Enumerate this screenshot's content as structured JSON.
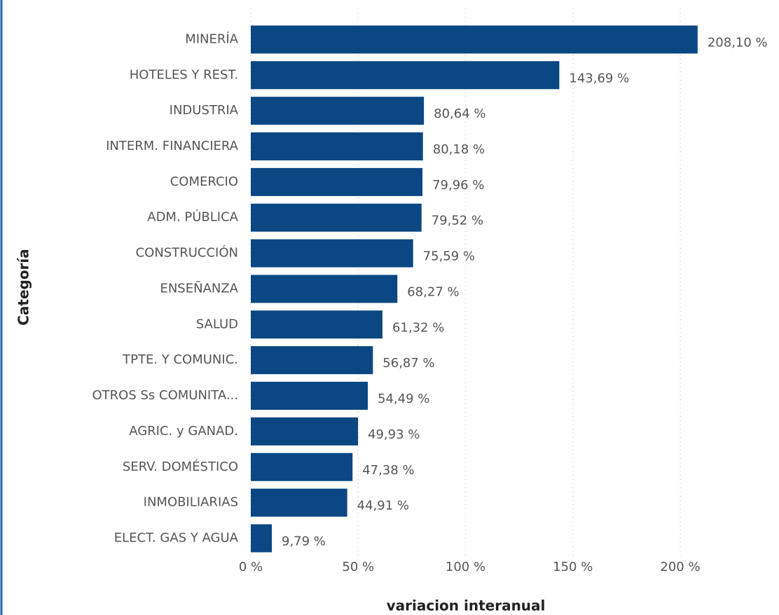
{
  "chart_data": {
    "type": "bar",
    "orientation": "horizontal",
    "x_label": "variacion interanual",
    "y_label": "Categoría",
    "categories": [
      "MINERÍA",
      "HOTELES Y REST.",
      "INDUSTRIA",
      "INTERM. FINANCIERA",
      "COMERCIO",
      "ADM. PÚBLICA",
      "CONSTRUCCIÓN",
      "ENSEÑANZA",
      "SALUD",
      "TPTE. Y COMUNIC.",
      "OTROS Ss COMUNITA...",
      "AGRIC. y GANAD.",
      "SERV. DOMÉSTICO",
      "INMOBILIARIAS",
      "ELECT. GAS Y AGUA"
    ],
    "values": [
      208.1,
      143.69,
      80.64,
      80.18,
      79.96,
      79.52,
      75.59,
      68.27,
      61.32,
      56.87,
      54.49,
      49.93,
      47.38,
      44.91,
      9.79
    ],
    "value_labels": [
      "208,10 %",
      "143,69 %",
      "80,64 %",
      "80,18 %",
      "79,96 %",
      "79,52 %",
      "75,59 %",
      "68,27 %",
      "61,32 %",
      "56,87 %",
      "54,49 %",
      "49,93 %",
      "47,38 %",
      "44,91 %",
      "9,79 %"
    ],
    "color": "#0a4783",
    "xlim": [
      0,
      220
    ],
    "xticks": [
      {
        "value": 0,
        "label": "0 %"
      },
      {
        "value": 50,
        "label": "50 %"
      },
      {
        "value": 100,
        "label": "100 %"
      },
      {
        "value": 150,
        "label": "150 %"
      },
      {
        "value": 200,
        "label": "200 %"
      }
    ],
    "grid": true
  }
}
